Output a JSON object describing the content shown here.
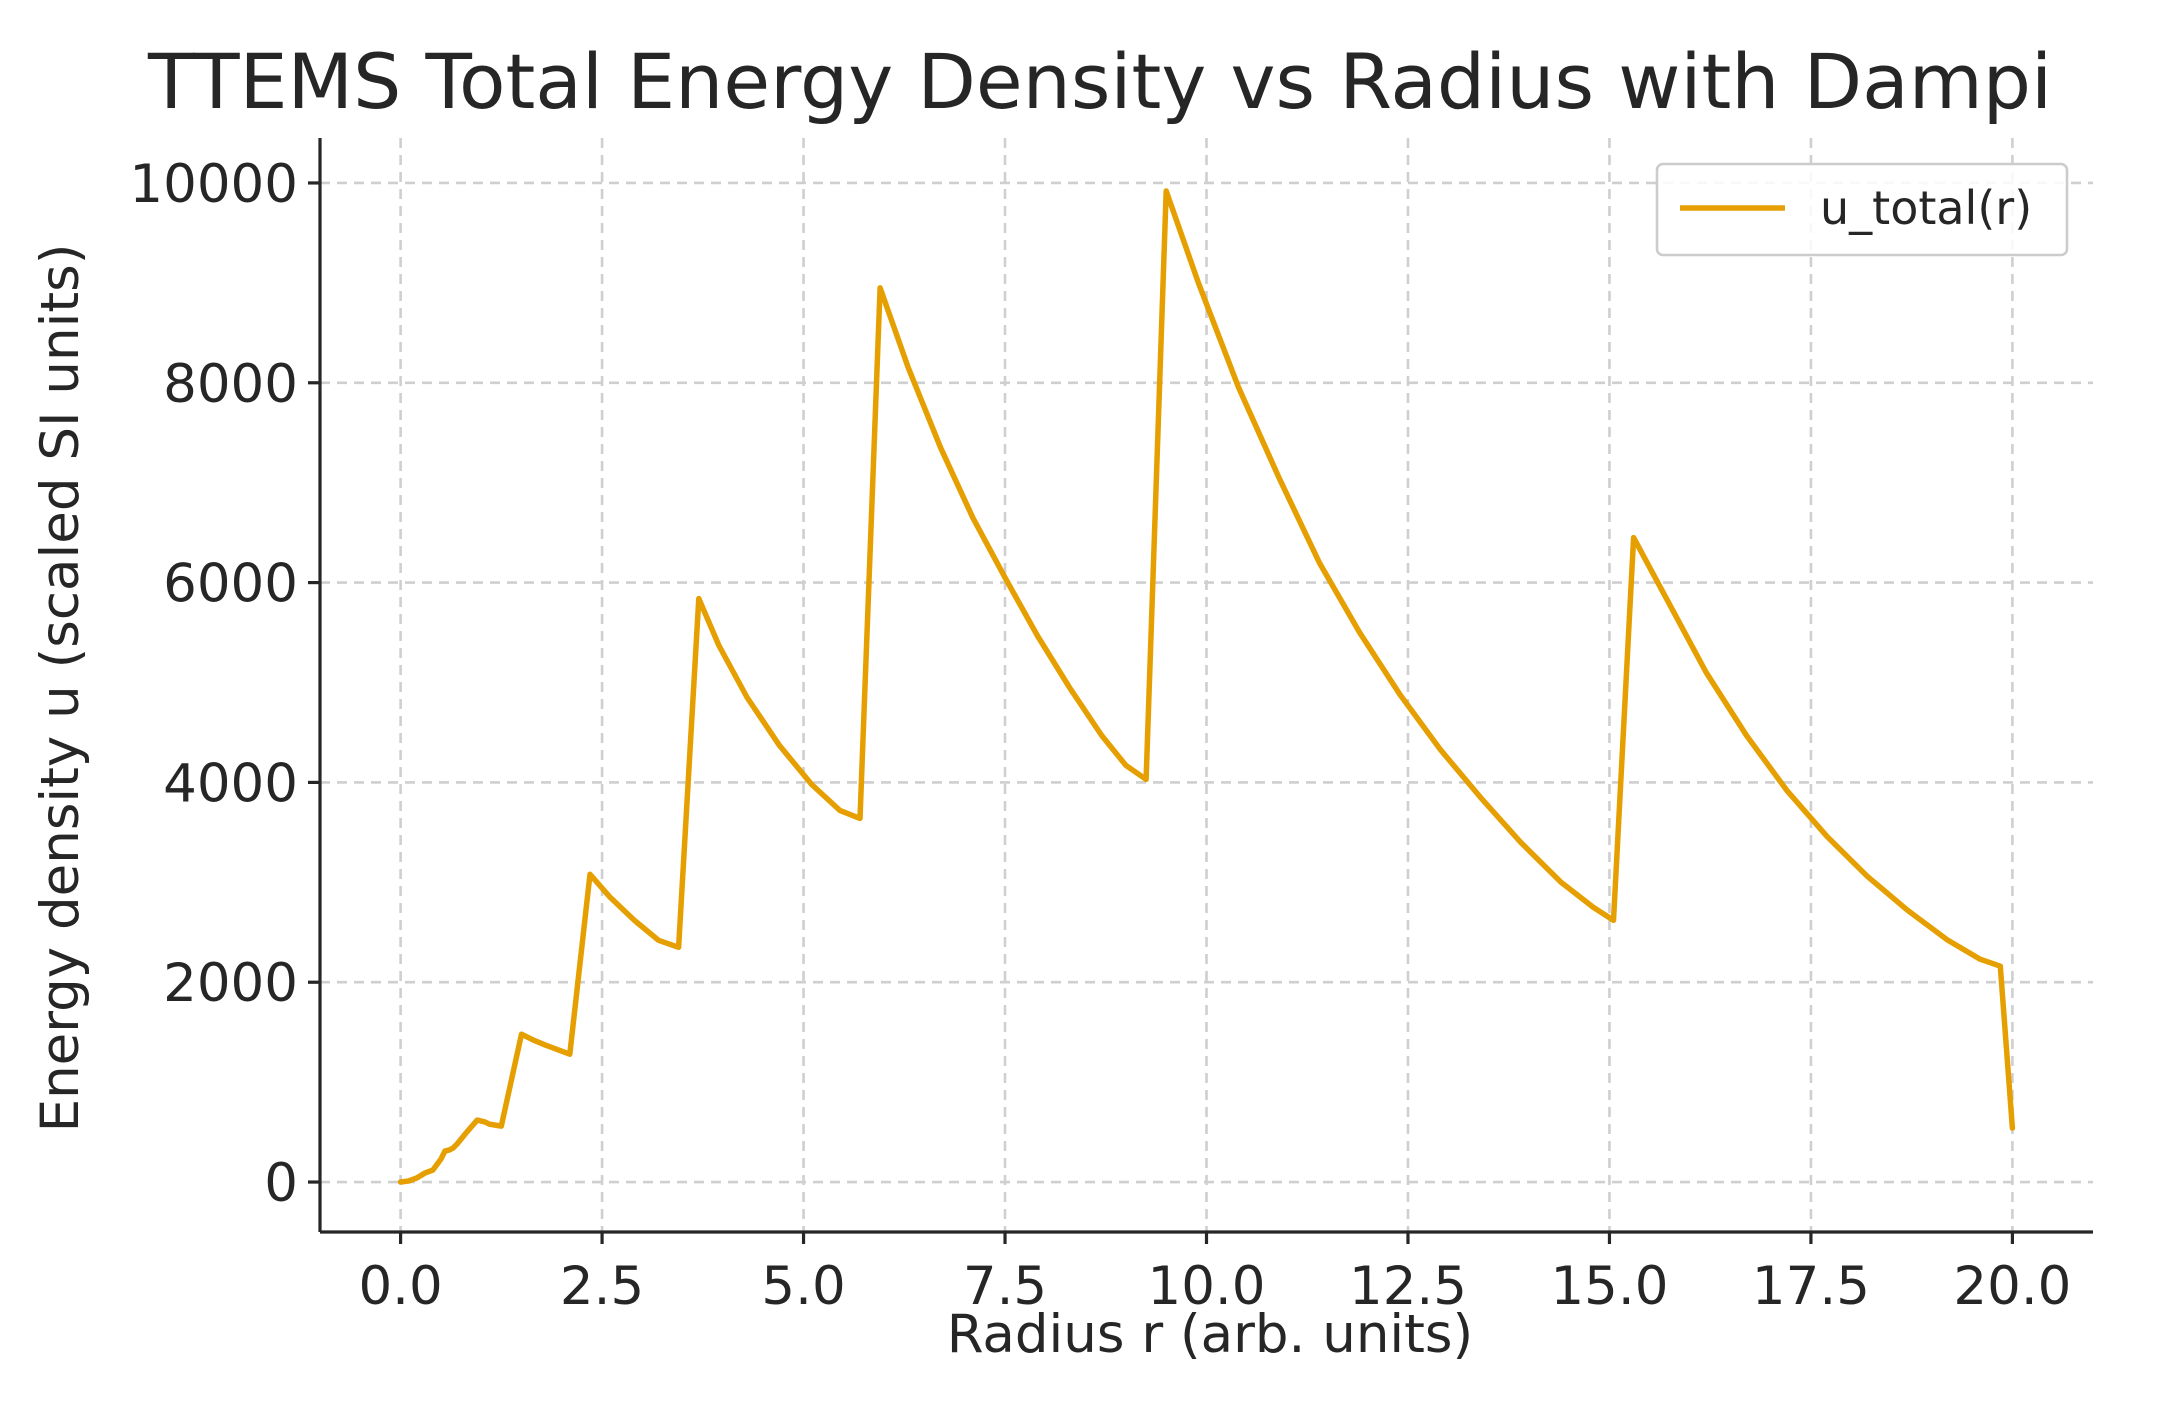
{
  "chart_data": {
    "type": "line",
    "title": "TTEMS Total Energy Density vs Radius with Dampi",
    "xlabel": "Radius r (arb. units)",
    "ylabel": "Energy density u (scaled SI units)",
    "xlim": [
      -1.0,
      21.0
    ],
    "ylim": [
      -500,
      10450
    ],
    "xticks": [
      0.0,
      2.5,
      5.0,
      7.5,
      10.0,
      12.5,
      15.0,
      17.5,
      20.0
    ],
    "xtick_labels": [
      "0.0",
      "2.5",
      "5.0",
      "7.5",
      "10.0",
      "12.5",
      "15.0",
      "17.5",
      "20.0"
    ],
    "yticks": [
      0,
      2000,
      4000,
      6000,
      8000,
      10000
    ],
    "ytick_labels": [
      "0",
      "2000",
      "4000",
      "6000",
      "8000",
      "10000"
    ],
    "grid": true,
    "legend_position": "top-right",
    "series": [
      {
        "name": "u_total(r)",
        "color": "#E69F00",
        "x": [
          0.0,
          0.1,
          0.2,
          0.3,
          0.4,
          0.5,
          0.55,
          0.6,
          0.65,
          0.7,
          0.8,
          0.95,
          1.05,
          1.1,
          1.25,
          1.5,
          1.65,
          1.8,
          2.1,
          2.35,
          2.6,
          2.9,
          3.2,
          3.45,
          3.7,
          3.95,
          4.3,
          4.7,
          5.1,
          5.45,
          5.7,
          5.95,
          6.3,
          6.7,
          7.1,
          7.5,
          7.9,
          8.3,
          8.7,
          9.0,
          9.25,
          9.5,
          9.9,
          10.4,
          10.9,
          11.4,
          11.9,
          12.4,
          12.9,
          13.4,
          13.9,
          14.4,
          14.8,
          15.05,
          15.3,
          15.7,
          16.2,
          16.7,
          17.2,
          17.7,
          18.2,
          18.7,
          19.2,
          19.6,
          19.85,
          20.0
        ],
        "y": [
          0,
          10,
          40,
          90,
          120,
          230,
          310,
          320,
          340,
          380,
          480,
          620,
          600,
          580,
          560,
          1480,
          1420,
          1370,
          1280,
          3080,
          2850,
          2620,
          2420,
          2350,
          5840,
          5370,
          4850,
          4370,
          3980,
          3720,
          3640,
          8950,
          8150,
          7350,
          6650,
          6050,
          5470,
          4950,
          4470,
          4170,
          4030,
          9920,
          9000,
          7950,
          7050,
          6200,
          5500,
          4880,
          4330,
          3850,
          3400,
          3000,
          2750,
          2620,
          6450,
          5850,
          5100,
          4470,
          3920,
          3460,
          3060,
          2720,
          2420,
          2230,
          2160,
          540
        ]
      }
    ]
  }
}
